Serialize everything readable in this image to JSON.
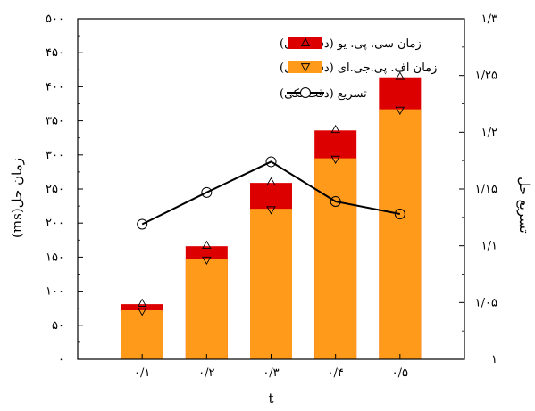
{
  "chart_data": {
    "type": "bar",
    "categories": [
      "۰/۱",
      "۰/۲",
      "۰/۳",
      "۰/۴",
      "۰/۵"
    ],
    "x": [
      0.1,
      0.2,
      0.3,
      0.4,
      0.5
    ],
    "xlabel": "t",
    "ylabel_left": "زمان حل(ms)",
    "ylabel_right": "تسریع حل",
    "ylim_left": [
      0,
      500
    ],
    "ylim_right": [
      1,
      1.3
    ],
    "y_ticks_left": [
      "۰",
      "۵۰",
      "۱۰۰",
      "۱۵۰",
      "۲۰۰",
      "۲۵۰",
      "۳۰۰",
      "۳۵۰",
      "۴۰۰",
      "۴۵۰",
      "۵۰۰"
    ],
    "y_ticks_right": [
      "۱",
      "۱/۰۵",
      "۱/۱",
      "۱/۱۵",
      "۱/۲",
      "۱/۲۵",
      "۱/۳"
    ],
    "y_tick_values_left": [
      0,
      50,
      100,
      150,
      200,
      250,
      300,
      350,
      400,
      450,
      500
    ],
    "y_tick_values_right": [
      1,
      1.05,
      1.1,
      1.15,
      1.2,
      1.25,
      1.3
    ],
    "series": [
      {
        "name": "زمان سی. پی. یو (دقت تکی)",
        "type": "bar",
        "axis": "left",
        "color": "#dd0000",
        "marker": "triangle-up",
        "values": [
          81,
          166,
          259,
          336,
          414
        ]
      },
      {
        "name": "زمان اف. پی.جی.ای (دقت تکی)",
        "type": "bar",
        "axis": "left",
        "color": "#ff9a1a",
        "marker": "triangle-down",
        "values": [
          72,
          147,
          221,
          295,
          367
        ]
      },
      {
        "name": "تسریع (دقت تکی)",
        "type": "line",
        "axis": "right",
        "color": "#000000",
        "marker": "circle",
        "values": [
          1.119,
          1.147,
          1.174,
          1.139,
          1.128
        ]
      }
    ],
    "legend_position": "top-left",
    "grid": false
  }
}
